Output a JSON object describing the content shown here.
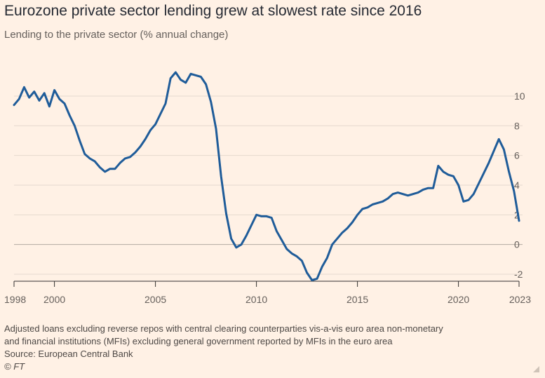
{
  "header": {
    "title": "Eurozone private sector lending grew at slowest rate since 2016",
    "subtitle": "Lending to the private sector (% annual change)"
  },
  "footer": {
    "note_line1": "Adjusted loans excluding reverse repos with central clearing counterparties vis-a-vis euro area non-monetary",
    "note_line2": "and financial institutions (MFIs) excluding general government reported by MFIs in the euro area",
    "source": "Source: European Central Bank",
    "copyright": "© FT"
  },
  "colors": {
    "background": "#FFF1E5",
    "line": "#1F5C99",
    "grid": "#E6D9CE",
    "zero_line": "#B3A9A0"
  },
  "chart_data": {
    "type": "line",
    "title": "Eurozone private sector lending grew at slowest rate since 2016",
    "subtitle": "Lending to the private sector (% annual change)",
    "xlabel": "",
    "ylabel": "",
    "xlim": [
      1997.75,
      2023.1
    ],
    "ylim": [
      -2.5,
      12
    ],
    "y_ticks": [
      10,
      8,
      6,
      4,
      2,
      0,
      -2
    ],
    "y_tick_labels": [
      "10",
      "8",
      "6",
      "4",
      "2",
      "0",
      "-2"
    ],
    "y_axis_position": "right",
    "x_ticks": [
      1998,
      2000,
      2005,
      2010,
      2015,
      2020,
      2023
    ],
    "x_tick_labels": [
      "1998",
      "2000",
      "2005",
      "2010",
      "2015",
      "2020",
      "2023"
    ],
    "grid": "horizontal",
    "series": [
      {
        "x": [
          1998.0,
          1998.25,
          1998.5,
          1998.75,
          1999.0,
          1999.25,
          1999.5,
          1999.75,
          2000.0,
          2000.25,
          2000.5,
          2000.75,
          2001.0,
          2001.25,
          2001.5,
          2001.75,
          2002.0,
          2002.25,
          2002.5,
          2002.75,
          2003.0,
          2003.25,
          2003.5,
          2003.75,
          2004.0,
          2004.25,
          2004.5,
          2004.75,
          2005.0,
          2005.25,
          2005.5,
          2005.75,
          2006.0,
          2006.25,
          2006.5,
          2006.75,
          2007.0,
          2007.25,
          2007.5,
          2007.75,
          2008.0,
          2008.25,
          2008.5,
          2008.75,
          2009.0,
          2009.25,
          2009.5,
          2009.75,
          2010.0,
          2010.25,
          2010.5,
          2010.75,
          2011.0,
          2011.25,
          2011.5,
          2011.75,
          2012.0,
          2012.25,
          2012.5,
          2012.75,
          2013.0,
          2013.25,
          2013.5,
          2013.75,
          2014.0,
          2014.25,
          2014.5,
          2014.75,
          2015.0,
          2015.25,
          2015.5,
          2015.75,
          2016.0,
          2016.25,
          2016.5,
          2016.75,
          2017.0,
          2017.25,
          2017.5,
          2017.75,
          2018.0,
          2018.25,
          2018.5,
          2018.75,
          2019.0,
          2019.25,
          2019.5,
          2019.75,
          2020.0,
          2020.25,
          2020.5,
          2020.75,
          2021.0,
          2021.25,
          2021.5,
          2021.75,
          2022.0,
          2022.25,
          2022.5,
          2022.75,
          2023.0
        ],
        "y": [
          9.4,
          9.8,
          10.6,
          9.9,
          10.3,
          9.7,
          10.2,
          9.3,
          10.4,
          9.8,
          9.5,
          8.7,
          8.0,
          7.0,
          6.1,
          5.8,
          5.6,
          5.2,
          4.9,
          5.1,
          5.1,
          5.5,
          5.8,
          5.9,
          6.2,
          6.6,
          7.1,
          7.7,
          8.1,
          8.8,
          9.5,
          11.2,
          11.6,
          11.1,
          10.9,
          11.5,
          11.4,
          11.3,
          10.8,
          9.6,
          7.8,
          4.6,
          2.1,
          0.4,
          -0.2,
          0.0,
          0.6,
          1.3,
          2.0,
          1.9,
          1.9,
          1.8,
          0.9,
          0.3,
          -0.3,
          -0.6,
          -0.8,
          -1.1,
          -1.9,
          -2.4,
          -2.3,
          -1.5,
          -0.9,
          0.0,
          0.4,
          0.8,
          1.1,
          1.5,
          2.0,
          2.4,
          2.5,
          2.7,
          2.8,
          2.9,
          3.1,
          3.4,
          3.5,
          3.4,
          3.3,
          3.4,
          3.5,
          3.7,
          3.8,
          3.8,
          5.3,
          4.9,
          4.7,
          4.6,
          4.0,
          2.9,
          3.0,
          3.4,
          4.1,
          4.8,
          5.5,
          6.3,
          7.1,
          6.4,
          4.9,
          3.6,
          1.6
        ]
      }
    ]
  }
}
